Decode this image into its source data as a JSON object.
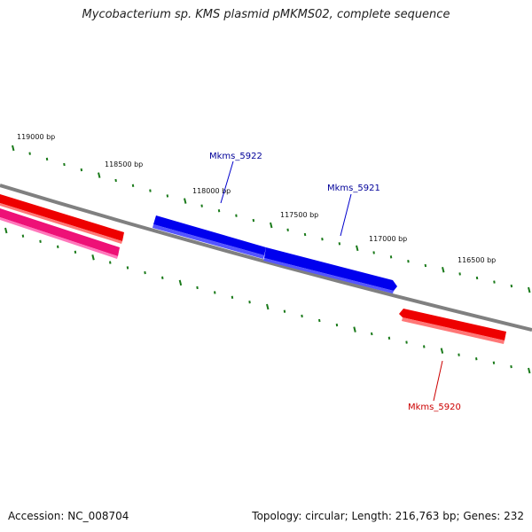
{
  "title": "Mycobacterium sp. KMS plasmid pMKMS02, complete sequence",
  "footer": {
    "accession": "Accession: NC_008704",
    "summary": "Topology: circular; Length: 216,763 bp; Genes: 232"
  },
  "colors": {
    "backbone": "#808080",
    "tick": "#1a7a1a",
    "forward_gene": "#0000ee",
    "reverse_gene": "#ee0000",
    "other_gene": "#ff3399",
    "label_blue": "#000099",
    "label_red": "#cc0000"
  },
  "position_labels": [
    "119000 bp",
    "118500 bp",
    "118000 bp",
    "117500 bp",
    "117000 bp",
    "116500 bp"
  ],
  "genes": [
    {
      "name": "Mkms_5922",
      "strand": "forward",
      "color": "#0000ee"
    },
    {
      "name": "Mkms_5921",
      "strand": "forward",
      "color": "#0000ee"
    },
    {
      "name": "Mkms_5920",
      "strand": "reverse",
      "color": "#ee0000"
    }
  ]
}
